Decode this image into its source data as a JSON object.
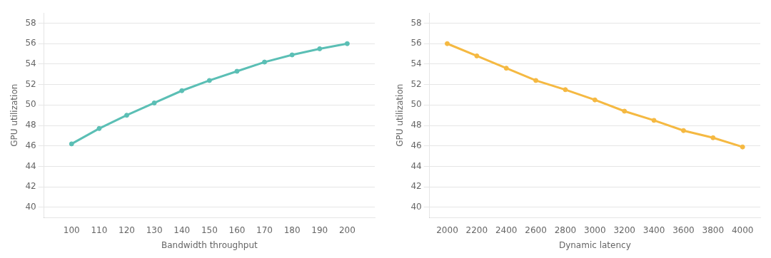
{
  "chart_data": [
    {
      "type": "line",
      "x": [
        100,
        110,
        120,
        130,
        140,
        150,
        160,
        170,
        180,
        190,
        200
      ],
      "values": [
        46.2,
        47.7,
        49.0,
        50.2,
        51.4,
        52.4,
        53.3,
        54.2,
        54.9,
        55.5,
        56.0
      ],
      "color": "#5bbfb5",
      "marker": "circle",
      "xlabel": "Bandwidth throughput",
      "ylabel": "GPU utilization",
      "xlim": [
        90,
        210
      ],
      "ylim": [
        39,
        59
      ],
      "xticks": [
        100,
        110,
        120,
        130,
        140,
        150,
        160,
        170,
        180,
        190,
        200
      ],
      "yticks": [
        40,
        42,
        44,
        46,
        48,
        50,
        52,
        54,
        56,
        58
      ],
      "grid": "y"
    },
    {
      "type": "line",
      "x": [
        2000,
        2200,
        2400,
        2600,
        2800,
        3000,
        3200,
        3400,
        3600,
        3800,
        4000
      ],
      "values": [
        56.0,
        54.8,
        53.6,
        52.4,
        51.5,
        50.5,
        49.4,
        48.5,
        47.5,
        46.8,
        45.9
      ],
      "color": "#f5b942",
      "marker": "circle",
      "xlabel": "Dynamic latency",
      "ylabel": "GPU utilization",
      "xlim": [
        1880,
        4120
      ],
      "ylim": [
        39,
        59
      ],
      "xticks": [
        2000,
        2200,
        2400,
        2600,
        2800,
        3000,
        3200,
        3400,
        3600,
        3800,
        4000
      ],
      "yticks": [
        40,
        42,
        44,
        46,
        48,
        50,
        52,
        54,
        56,
        58
      ],
      "grid": "y"
    }
  ]
}
